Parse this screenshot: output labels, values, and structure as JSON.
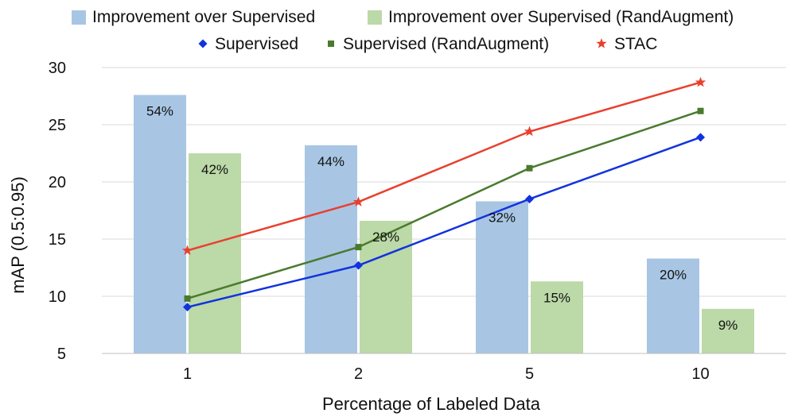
{
  "chart_data": {
    "type": "bar",
    "categories": [
      "1",
      "2",
      "5",
      "10"
    ],
    "xlabel": "Percentage of Labeled Data",
    "ylabel": "mAP (0.5:0.95)",
    "ylim": [
      5,
      30
    ],
    "yticks": [
      "5",
      "10",
      "15",
      "20",
      "25",
      "30"
    ],
    "grid": true,
    "legend_position": "top",
    "bar_series": [
      {
        "name": "Improvement over Supervised",
        "color": "#a8c6e4",
        "values": [
          27.6,
          23.2,
          18.3,
          13.3
        ],
        "labels": [
          "54%",
          "44%",
          "32%",
          "20%"
        ]
      },
      {
        "name": "Improvement over Supervised (RandAugment)",
        "color": "#bcd9a8",
        "values": [
          22.5,
          16.6,
          11.3,
          8.9
        ],
        "labels": [
          "42%",
          "28%",
          "15%",
          "9%"
        ]
      }
    ],
    "line_series": [
      {
        "name": "Supervised",
        "color": "#1133dd",
        "marker": "diamond",
        "values": [
          9.05,
          12.7,
          18.5,
          23.9
        ]
      },
      {
        "name": "Supervised (RandAugment)",
        "color": "#4a7a2e",
        "marker": "square",
        "values": [
          9.8,
          14.3,
          21.2,
          26.2
        ]
      },
      {
        "name": "STAC",
        "color": "#e8402f",
        "marker": "star",
        "values": [
          14.0,
          18.25,
          24.4,
          28.7
        ]
      }
    ]
  }
}
